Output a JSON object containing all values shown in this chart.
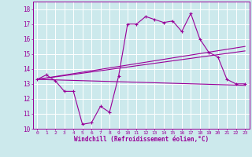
{
  "xlabel": "Windchill (Refroidissement éolien,°C)",
  "bg_color": "#cce9ec",
  "line_color": "#990099",
  "grid_color": "#ffffff",
  "xlim": [
    -0.5,
    23.5
  ],
  "ylim": [
    10,
    18.5
  ],
  "yticks": [
    10,
    11,
    12,
    13,
    14,
    15,
    16,
    17,
    18
  ],
  "xticks": [
    0,
    1,
    2,
    3,
    4,
    5,
    6,
    7,
    8,
    9,
    10,
    11,
    12,
    13,
    14,
    15,
    16,
    17,
    18,
    19,
    20,
    21,
    22,
    23
  ],
  "series1_x": [
    0,
    1,
    2,
    3,
    4,
    5,
    6,
    7,
    8,
    9,
    10,
    11,
    12,
    13,
    14,
    15,
    16,
    17,
    18,
    19,
    20,
    21,
    22,
    23
  ],
  "series1_y": [
    13.3,
    13.6,
    13.2,
    12.5,
    12.5,
    10.3,
    10.4,
    11.5,
    11.1,
    13.5,
    17.0,
    17.0,
    17.5,
    17.3,
    17.1,
    17.2,
    16.5,
    17.7,
    16.0,
    15.1,
    14.8,
    13.3,
    13.0,
    13.0
  ],
  "line2_x": [
    0,
    23
  ],
  "line2_y": [
    13.3,
    15.5
  ],
  "line3_x": [
    0,
    23
  ],
  "line3_y": [
    13.3,
    15.2
  ],
  "line4_x": [
    0,
    23
  ],
  "line4_y": [
    13.3,
    12.9
  ]
}
